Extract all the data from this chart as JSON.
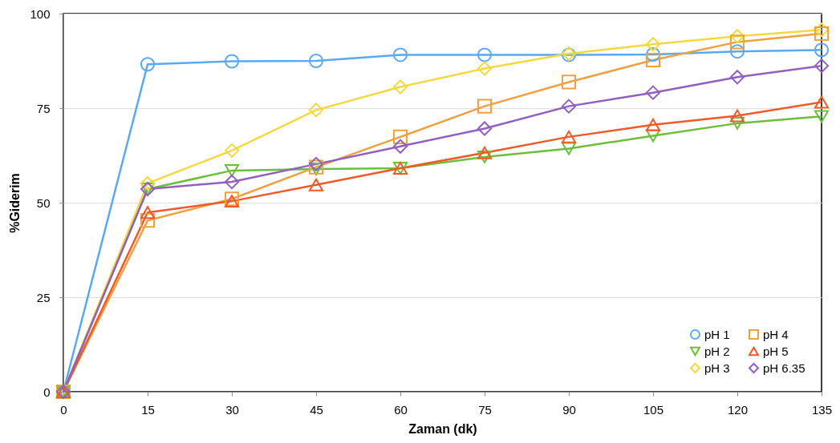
{
  "chart_data": {
    "type": "line",
    "xlabel": "Zaman (dk)",
    "ylabel": "%Giderim",
    "x": [
      0,
      15,
      30,
      45,
      60,
      75,
      90,
      105,
      120,
      135
    ],
    "xlim": [
      0,
      135
    ],
    "xticks": [
      0,
      15,
      30,
      45,
      60,
      75,
      90,
      105,
      120,
      135
    ],
    "ylim": [
      0,
      100
    ],
    "yticks": [
      0,
      25,
      50,
      75,
      100
    ],
    "grid": "y",
    "legend": "bottom right",
    "line_style": "solid",
    "series": [
      {
        "name": "pH 1",
        "color": "#5aa9f0",
        "marker": "circle",
        "values": [
          0,
          86.6,
          87.4,
          87.5,
          89.1,
          89.1,
          89.1,
          89.2,
          90.0,
          90.4
        ]
      },
      {
        "name": "pH 2",
        "color": "#6cbf3a",
        "marker": "triangle-down",
        "values": [
          0,
          53.6,
          58.5,
          58.9,
          59.1,
          62.1,
          64.3,
          67.7,
          71.0,
          72.8
        ]
      },
      {
        "name": "pH 3",
        "color": "#f5d840",
        "marker": "diamond",
        "values": [
          0,
          55.1,
          63.8,
          74.5,
          80.6,
          85.5,
          89.4,
          91.9,
          94.0,
          95.7
        ]
      },
      {
        "name": "pH 4",
        "color": "#f0a040",
        "marker": "square",
        "values": [
          0,
          45.3,
          51.0,
          59.4,
          67.4,
          75.5,
          81.9,
          87.7,
          92.5,
          94.7
        ]
      },
      {
        "name": "pH 5",
        "color": "#f05a28",
        "marker": "triangle",
        "values": [
          0,
          47.4,
          50.4,
          54.7,
          59.1,
          63.2,
          67.4,
          70.6,
          73.0,
          76.6
        ]
      },
      {
        "name": "pH 6.35",
        "color": "#9060c0",
        "marker": "diamond",
        "values": [
          0,
          53.6,
          55.5,
          60.2,
          64.9,
          69.6,
          75.5,
          79.1,
          83.2,
          86.2
        ]
      }
    ]
  }
}
